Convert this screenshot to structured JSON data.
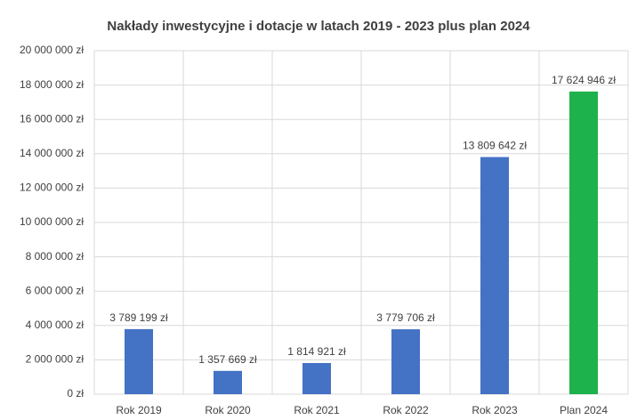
{
  "chart_data": {
    "type": "bar",
    "title": "Nakłady inwestycyjne i dotacje w latach 2019 - 2023 plus plan 2024",
    "categories": [
      "Rok 2019",
      "Rok 2020",
      "Rok 2021",
      "Rok 2022",
      "Rok 2023",
      "Plan 2024"
    ],
    "values": [
      3789199,
      1357669,
      1814921,
      3779706,
      13809642,
      17624946
    ],
    "value_labels": [
      "3 789 199 zł",
      "1 357 669 zł",
      "1 814 921 zł",
      "3 779 706 zł",
      "13 809 642 zł",
      "17 624 946 zł"
    ],
    "colors": [
      "#4472c4",
      "#4472c4",
      "#4472c4",
      "#4472c4",
      "#4472c4",
      "#1db24b"
    ],
    "ylim": [
      0,
      20000000
    ],
    "yticks": [
      {
        "value": 0,
        "label": "0 zł"
      },
      {
        "value": 2000000,
        "label": "2 000 000 zł"
      },
      {
        "value": 4000000,
        "label": "4 000 000 zł"
      },
      {
        "value": 6000000,
        "label": "6 000 000 zł"
      },
      {
        "value": 8000000,
        "label": "8 000 000 zł"
      },
      {
        "value": 10000000,
        "label": "10 000 000 zł"
      },
      {
        "value": 12000000,
        "label": "12 000 000 zł"
      },
      {
        "value": 14000000,
        "label": "14 000 000 zł"
      },
      {
        "value": 16000000,
        "label": "16 000 000 zł"
      },
      {
        "value": 18000000,
        "label": "18 000 000 zł"
      },
      {
        "value": 20000000,
        "label": "20 000 000 zł"
      }
    ],
    "grid": true
  }
}
